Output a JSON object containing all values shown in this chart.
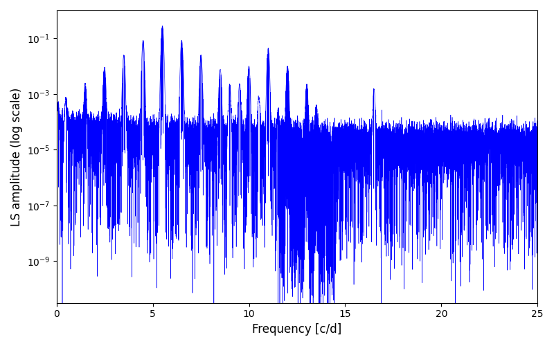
{
  "xlabel": "Frequency [c/d]",
  "ylabel": "LS amplitude (log scale)",
  "title": "",
  "line_color": "#0000FF",
  "xlim": [
    0,
    25
  ],
  "ylim_log": [
    -10.5,
    0
  ],
  "xfreq_max": 25,
  "n_points": 15000,
  "seed": 12345,
  "main_freq": 5.5,
  "main_amp": 0.28,
  "alias_freq_step": 1.0027,
  "background_base": 2e-05,
  "figsize": [
    8.0,
    5.0
  ],
  "dpi": 100
}
